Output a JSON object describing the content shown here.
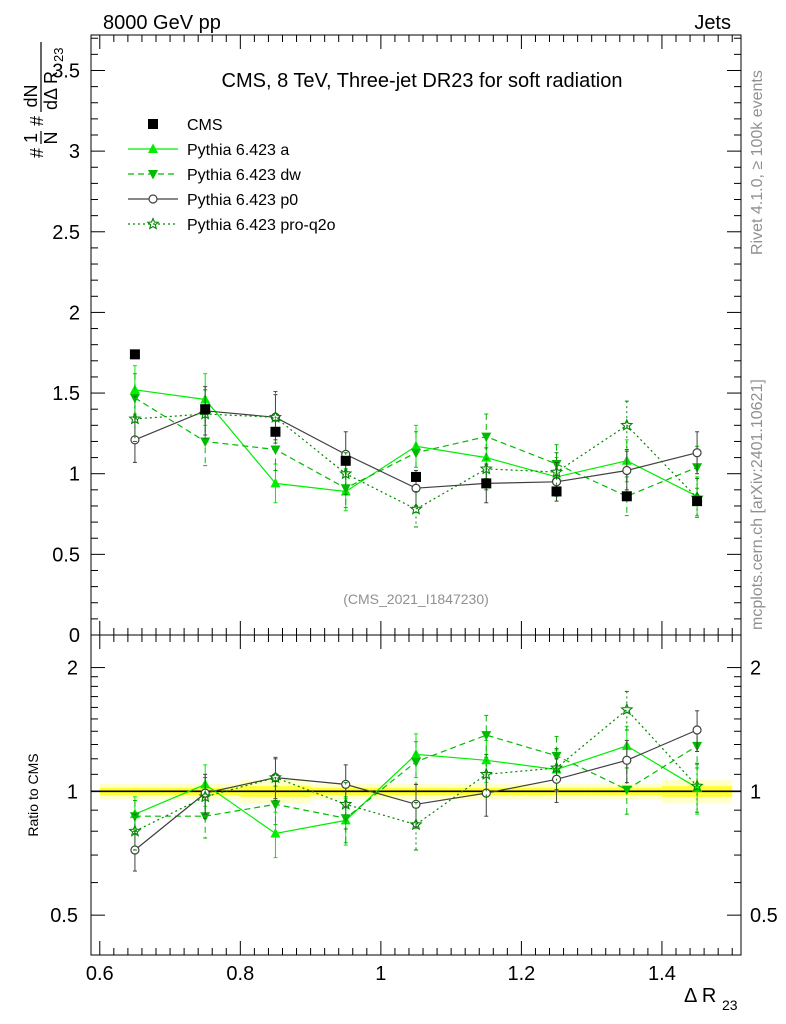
{
  "header": {
    "left": "8000 GeV pp",
    "right": "Jets",
    "side_top": "Rivet 4.1.0, ≥ 100k events",
    "side_bottom": "mcplots.cern.ch [arXiv:2401.10621]"
  },
  "colors": {
    "cms": "#000000",
    "pythia_a": "#00ee00",
    "pythia_dw": "#00bb00",
    "pythia_p0": "#404040",
    "pythia_proq2o": "#008800",
    "band_inner": "#ffff00",
    "band_outer": "#ffffcc",
    "watermark": "#909090"
  },
  "chart_data": [
    {
      "type": "line",
      "panel": "main",
      "title": "CMS, 8 TeV, Three-jet DR23 for soft radiation",
      "ylabel": "#frac{1}{N} #frac{dN}{dΔ R_{23}}",
      "xlabel": "",
      "watermark": "(CMS_2021_I1847230)",
      "xlim": [
        0.5875,
        1.5125
      ],
      "ylim": [
        0,
        3.72
      ],
      "yticks": [
        0,
        0.5,
        1,
        1.5,
        2,
        2.5,
        3,
        3.5
      ],
      "ytick_labels": [
        "0",
        "0.5",
        "1",
        "1.5",
        "2",
        "2.5",
        "3",
        "3.5"
      ],
      "x": [
        0.65,
        0.75,
        0.85,
        0.95,
        1.05,
        1.15,
        1.25,
        1.35,
        1.45
      ],
      "series": [
        {
          "name": "CMS",
          "marker": "square",
          "style": "none",
          "values": [
            1.74,
            1.4,
            1.26,
            1.08,
            0.98,
            0.94,
            0.89,
            0.86,
            0.83
          ],
          "errors": [
            0.02,
            0.02,
            0.02,
            0.02,
            0.02,
            0.02,
            0.02,
            0.02,
            0.02
          ]
        },
        {
          "name": "Pythia 6.423 a",
          "marker": "triangle-up",
          "style": "solid",
          "values": [
            1.52,
            1.46,
            0.94,
            0.89,
            1.17,
            1.1,
            0.98,
            1.08,
            0.86
          ],
          "errors": [
            0.15,
            0.16,
            0.12,
            0.12,
            0.13,
            0.13,
            0.12,
            0.13,
            0.12
          ]
        },
        {
          "name": "Pythia 6.423 dw",
          "marker": "triangle-down",
          "style": "dashed",
          "values": [
            1.47,
            1.2,
            1.15,
            0.91,
            1.13,
            1.23,
            1.06,
            0.86,
            1.04
          ],
          "errors": [
            0.15,
            0.15,
            0.13,
            0.12,
            0.13,
            0.14,
            0.12,
            0.12,
            0.13
          ]
        },
        {
          "name": "Pythia 6.423 p0",
          "marker": "circle-open",
          "style": "solid",
          "values": [
            1.21,
            1.39,
            1.35,
            1.12,
            0.91,
            0.94,
            0.95,
            1.02,
            1.13
          ],
          "errors": [
            0.14,
            0.15,
            0.14,
            0.14,
            0.11,
            0.12,
            0.12,
            0.12,
            0.13
          ]
        },
        {
          "name": "Pythia 6.423 pro-q2o",
          "marker": "star-open",
          "style": "dotted",
          "values": [
            1.34,
            1.37,
            1.35,
            1.0,
            0.78,
            1.03,
            1.01,
            1.3,
            0.85
          ],
          "errors": [
            0.14,
            0.15,
            0.16,
            0.13,
            0.11,
            0.13,
            0.12,
            0.15,
            0.12
          ]
        }
      ]
    },
    {
      "type": "line",
      "panel": "ratio",
      "ylabel": "Ratio to CMS",
      "xlabel": "Δ R",
      "xlabel_sub": "23",
      "scale": "log",
      "xlim": [
        0.5875,
        1.5125
      ],
      "ylim": [
        0.4,
        2.4
      ],
      "xticks": [
        0.6,
        0.8,
        1,
        1.2,
        1.4
      ],
      "xtick_labels": [
        "0.6",
        "0.8",
        "1",
        "1.2",
        "1.4"
      ],
      "yticks": [
        0.5,
        1,
        2
      ],
      "ytick_labels": [
        "0.5",
        "1",
        "2"
      ],
      "x": [
        0.65,
        0.75,
        0.85,
        0.95,
        1.05,
        1.15,
        1.25,
        1.35,
        1.45
      ],
      "band_halfwidth": [
        0.02,
        0.02,
        0.03,
        0.02,
        0.02,
        0.02,
        0.02,
        0.02,
        0.03
      ],
      "series": [
        {
          "name": "Pythia 6.423 a",
          "marker": "triangle-up",
          "style": "solid",
          "values": [
            0.88,
            1.04,
            0.79,
            0.85,
            1.23,
            1.19,
            1.13,
            1.29,
            1.02
          ],
          "errors": [
            0.09,
            0.12,
            0.1,
            0.11,
            0.15,
            0.14,
            0.13,
            0.15,
            0.14
          ]
        },
        {
          "name": "Pythia 6.423 dw",
          "marker": "triangle-down",
          "style": "dashed",
          "values": [
            0.87,
            0.87,
            0.93,
            0.86,
            1.18,
            1.37,
            1.22,
            1.01,
            1.29
          ],
          "errors": [
            0.08,
            0.1,
            0.1,
            0.11,
            0.14,
            0.16,
            0.14,
            0.13,
            0.15
          ]
        },
        {
          "name": "Pythia 6.423 p0",
          "marker": "circle-open",
          "style": "solid",
          "values": [
            0.72,
            0.99,
            1.08,
            1.04,
            0.93,
            0.99,
            1.07,
            1.19,
            1.41
          ],
          "errors": [
            0.08,
            0.11,
            0.12,
            0.12,
            0.11,
            0.12,
            0.13,
            0.14,
            0.16
          ]
        },
        {
          "name": "Pythia 6.423 pro-q2o",
          "marker": "star-open",
          "style": "dotted",
          "values": [
            0.8,
            0.97,
            1.08,
            0.93,
            0.83,
            1.1,
            1.14,
            1.58,
            1.03
          ],
          "errors": [
            0.08,
            0.11,
            0.13,
            0.12,
            0.11,
            0.13,
            0.13,
            0.17,
            0.14
          ]
        }
      ]
    }
  ]
}
